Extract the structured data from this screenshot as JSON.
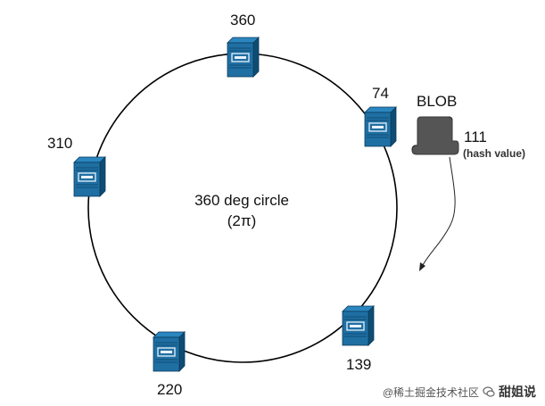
{
  "diagram": {
    "center_label_line1": "360 deg circle",
    "center_label_line2": "(2π)",
    "blob_label": "BLOB",
    "hash_value": "111",
    "hash_note": "(hash value)",
    "colors": {
      "server_blue": "#1f6fa3",
      "server_dark": "#0f4c74",
      "ring": "#000000",
      "blob_gray": "#555555"
    }
  },
  "servers": [
    {
      "id": "server-360",
      "label": "360"
    },
    {
      "id": "server-74",
      "label": "74"
    },
    {
      "id": "server-139",
      "label": "139"
    },
    {
      "id": "server-220",
      "label": "220"
    },
    {
      "id": "server-310",
      "label": "310"
    }
  ],
  "watermark": {
    "prefix": "@稀土掘金技术社区",
    "brand": "甜姐说"
  }
}
